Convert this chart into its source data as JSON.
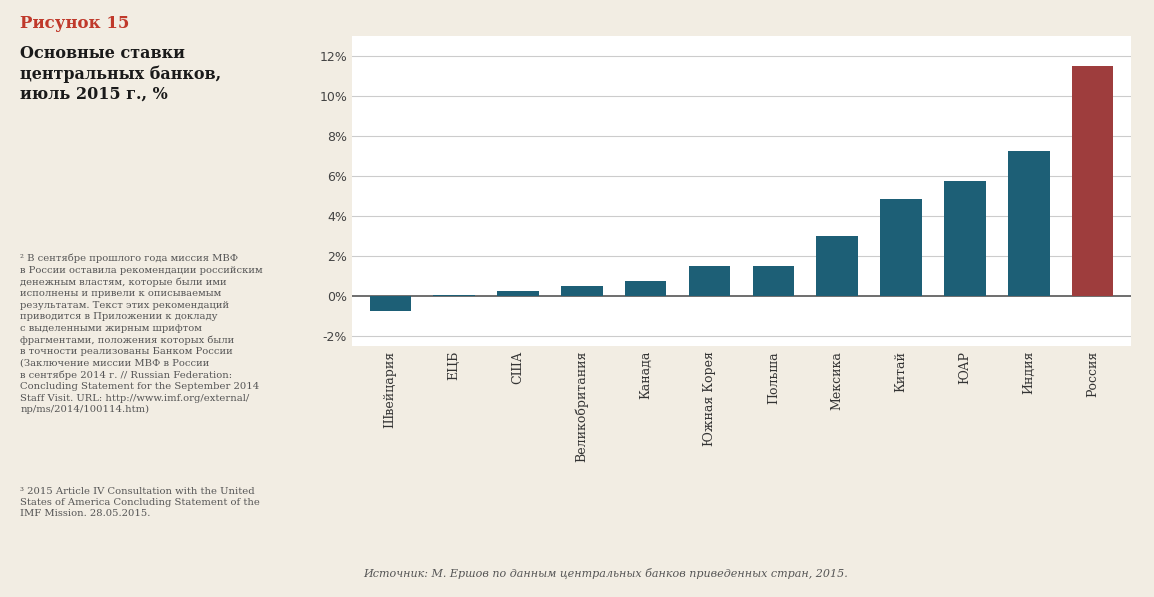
{
  "categories": [
    "Швейцария",
    "ЕЦБ",
    "США",
    "Великобритания",
    "Канада",
    "Южная Корея",
    "Польша",
    "Мексика",
    "Китай",
    "ЮАР",
    "Индия",
    "Россия"
  ],
  "values": [
    -0.75,
    0.05,
    0.25,
    0.5,
    0.75,
    1.5,
    1.5,
    3.0,
    4.85,
    5.75,
    7.25,
    11.5
  ],
  "bar_colors": [
    "#1d5f76",
    "#1d5f76",
    "#1d5f76",
    "#1d5f76",
    "#1d5f76",
    "#1d5f76",
    "#1d5f76",
    "#1d5f76",
    "#1d5f76",
    "#1d5f76",
    "#1d5f76",
    "#9e3d3d"
  ],
  "ylim": [
    -2.5,
    13.0
  ],
  "yticks": [
    -2,
    0,
    2,
    4,
    6,
    8,
    10,
    12
  ],
  "ytick_labels": [
    "-2%",
    "0%",
    "2%",
    "4%",
    "6%",
    "8%",
    "10%",
    "12%"
  ],
  "figure_title": "Рисунок 15",
  "subtitle": "Основные ставки\nцентральных банков,\nиюль 2015 г., %",
  "footnote2": "² В сентябре прошлого года миссия МВФ\nв России оставила рекомендации российским\nденежным властям, которые были ими\nисполнены и привели к описываемым\nрезультатам. Текст этих рекомендаций\nприводится в Приложении к докладу\nс выделенными жирным шрифтом\nфрагментами, положения которых были\nв точности реализованы Банком России\n(Заключение миссии МВФ в России\nв сентябре 2014 г. // Russian Federation:\nConcluding Statement for the September 2014\nStaff Visit. URL: http://www.imf.org/external/\nnp/ms/2014/100114.htm)",
  "footnote3": "³ 2015 Article IV Consultation with the United\nStates of America Concluding Statement of the\nIMF Mission. 28.05.2015.",
  "source_text": "Источник: М. Ершов по данным центральных банков приведенных стран, 2015.",
  "bg_color": "#f2ede3",
  "chart_bg": "#ffffff",
  "bar_color_blue": "#1d5f76",
  "bar_color_red": "#9e3d3d",
  "grid_color": "#cccccc",
  "zero_line_color": "#555555",
  "title_color": "#c0392b",
  "subtitle_color": "#1a1a1a",
  "footnote_color": "#555555",
  "source_color": "#555555"
}
